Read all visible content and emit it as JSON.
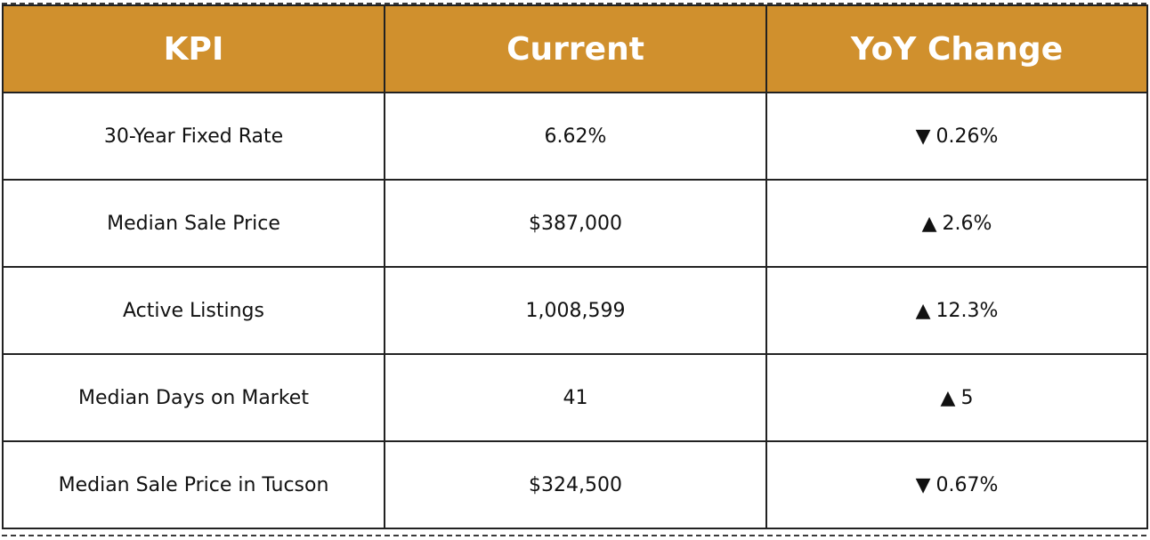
{
  "table": {
    "headers": [
      "KPI",
      "Current",
      "YoY Change"
    ],
    "rows": [
      {
        "kpi": "30-Year Fixed Rate",
        "current": "6.62%",
        "direction": "down",
        "arrow": "▼",
        "change": "0.26%"
      },
      {
        "kpi": "Median Sale Price",
        "current": "$387,000",
        "direction": "up",
        "arrow": "▲",
        "change": "2.6%"
      },
      {
        "kpi": "Active Listings",
        "current": "1,008,599",
        "direction": "up",
        "arrow": "▲",
        "change": "12.3%"
      },
      {
        "kpi": "Median Days on Market",
        "current": "41",
        "direction": "up",
        "arrow": "▲",
        "change": "5"
      },
      {
        "kpi": "Median Sale Price in Tucson",
        "current": "$324,500",
        "direction": "down",
        "arrow": "▼",
        "change": "0.67%"
      }
    ]
  },
  "colors": {
    "header_bg": "#d0902d",
    "header_text": "#ffffff",
    "border": "#222222"
  }
}
